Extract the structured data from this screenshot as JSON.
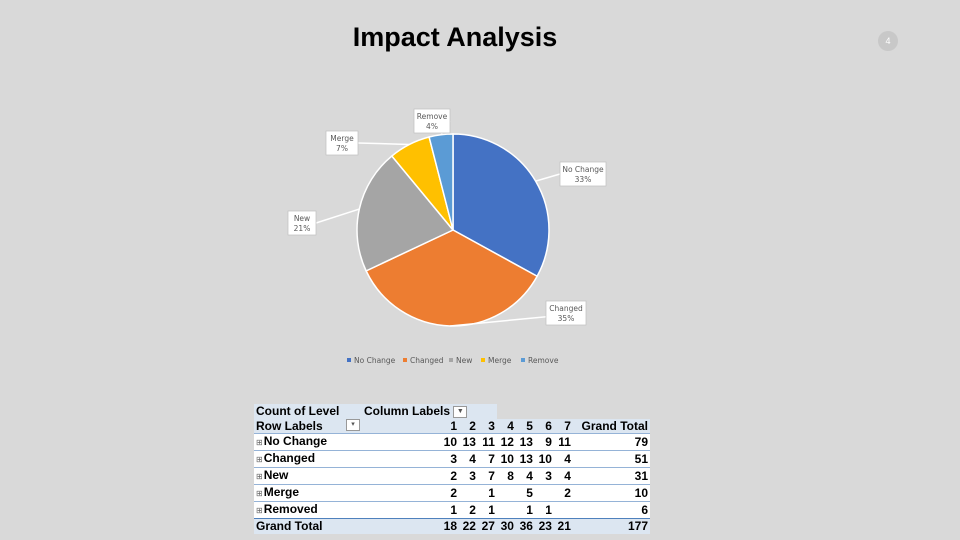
{
  "slide": {
    "title": "Impact Analysis",
    "page": "4"
  },
  "chart_data": {
    "type": "pie",
    "categories": [
      "No Change",
      "Changed",
      "New",
      "Merge",
      "Remove"
    ],
    "values": [
      33,
      35,
      21,
      7,
      4
    ],
    "labels": [
      "33%",
      "35%",
      "21%",
      "7%",
      "4%"
    ],
    "colors": [
      "#4472c4",
      "#ed7d31",
      "#a5a5a5",
      "#ffc000",
      "#5b9bd5"
    ],
    "legend": "bottom"
  },
  "pivot": {
    "corner": "Count of Level",
    "column_labels": "Column Labels",
    "row_labels": "Row Labels",
    "columns": [
      "1",
      "2",
      "3",
      "4",
      "5",
      "6",
      "7",
      "Grand Total"
    ],
    "rows": [
      {
        "label": "No Change",
        "values": [
          "10",
          "13",
          "11",
          "12",
          "13",
          "9",
          "11",
          "79"
        ]
      },
      {
        "label": "Changed",
        "values": [
          "3",
          "4",
          "7",
          "10",
          "13",
          "10",
          "4",
          "51"
        ]
      },
      {
        "label": "New",
        "values": [
          "2",
          "3",
          "7",
          "8",
          "4",
          "3",
          "4",
          "31"
        ]
      },
      {
        "label": "Merge",
        "values": [
          "2",
          "",
          "1",
          "",
          "5",
          "",
          "2",
          "10"
        ]
      },
      {
        "label": "Removed",
        "values": [
          "1",
          "2",
          "1",
          "",
          "1",
          "1",
          "",
          "6"
        ]
      }
    ],
    "grand_total": {
      "label": "Grand Total",
      "values": [
        "18",
        "22",
        "27",
        "30",
        "36",
        "23",
        "21",
        "177"
      ]
    }
  }
}
